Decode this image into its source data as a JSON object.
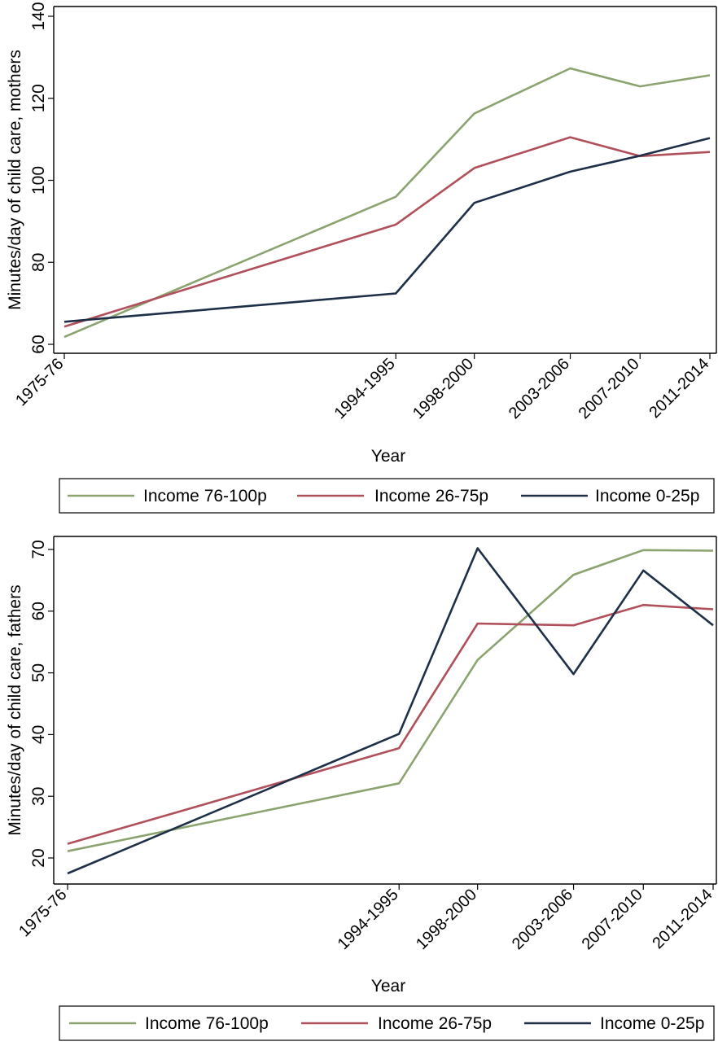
{
  "chart_data": [
    {
      "type": "line",
      "categories": [
        "1975-76",
        "1994-1995",
        "1998-2000",
        "2003-2006",
        "2007-2010",
        "2011-2014"
      ],
      "x_years": [
        1975.5,
        1994.5,
        1999,
        2004.5,
        2008.5,
        2012.5
      ],
      "xlabel": "Year",
      "ylabel": "Minutes/day of child care, mothers",
      "ylim": [
        60,
        140
      ],
      "yticks": [
        60,
        80,
        100,
        120,
        140
      ],
      "legend_position": "bottom",
      "series": [
        {
          "name": "Income 76-100p",
          "color": "#8ba36f",
          "values": [
            61.8,
            96.0,
            116.3,
            127.3,
            122.9,
            125.6
          ]
        },
        {
          "name": "Income 26-75p",
          "color": "#b0505a",
          "values": [
            64.3,
            89.2,
            103.0,
            110.5,
            105.9,
            106.9
          ]
        },
        {
          "name": "Income 0-25p",
          "color": "#1e2f48",
          "values": [
            65.5,
            72.4,
            94.5,
            102.1,
            106.0,
            110.3
          ]
        }
      ]
    },
    {
      "type": "line",
      "categories": [
        "1975-76",
        "1994-1995",
        "1998-2000",
        "2003-2006",
        "2007-2010",
        "2011-2014"
      ],
      "x_years": [
        1975.5,
        1994.5,
        1999,
        2004.5,
        2008.5,
        2012.5
      ],
      "xlabel": "Year",
      "ylabel": "Minutes/day of child care, fathers",
      "ylim": [
        20,
        70
      ],
      "yticks": [
        20,
        30,
        40,
        50,
        60,
        70
      ],
      "legend_position": "bottom",
      "series": [
        {
          "name": "Income 76-100p",
          "color": "#8ba36f",
          "values": [
            21.1,
            32.1,
            52.1,
            65.9,
            69.9,
            69.8
          ]
        },
        {
          "name": "Income 26-75p",
          "color": "#b0505a",
          "values": [
            22.3,
            37.8,
            58.0,
            57.7,
            61.0,
            60.3
          ]
        },
        {
          "name": "Income 0-25p",
          "color": "#1e2f48",
          "values": [
            17.5,
            40.1,
            70.2,
            49.8,
            66.6,
            57.7
          ]
        }
      ]
    }
  ]
}
